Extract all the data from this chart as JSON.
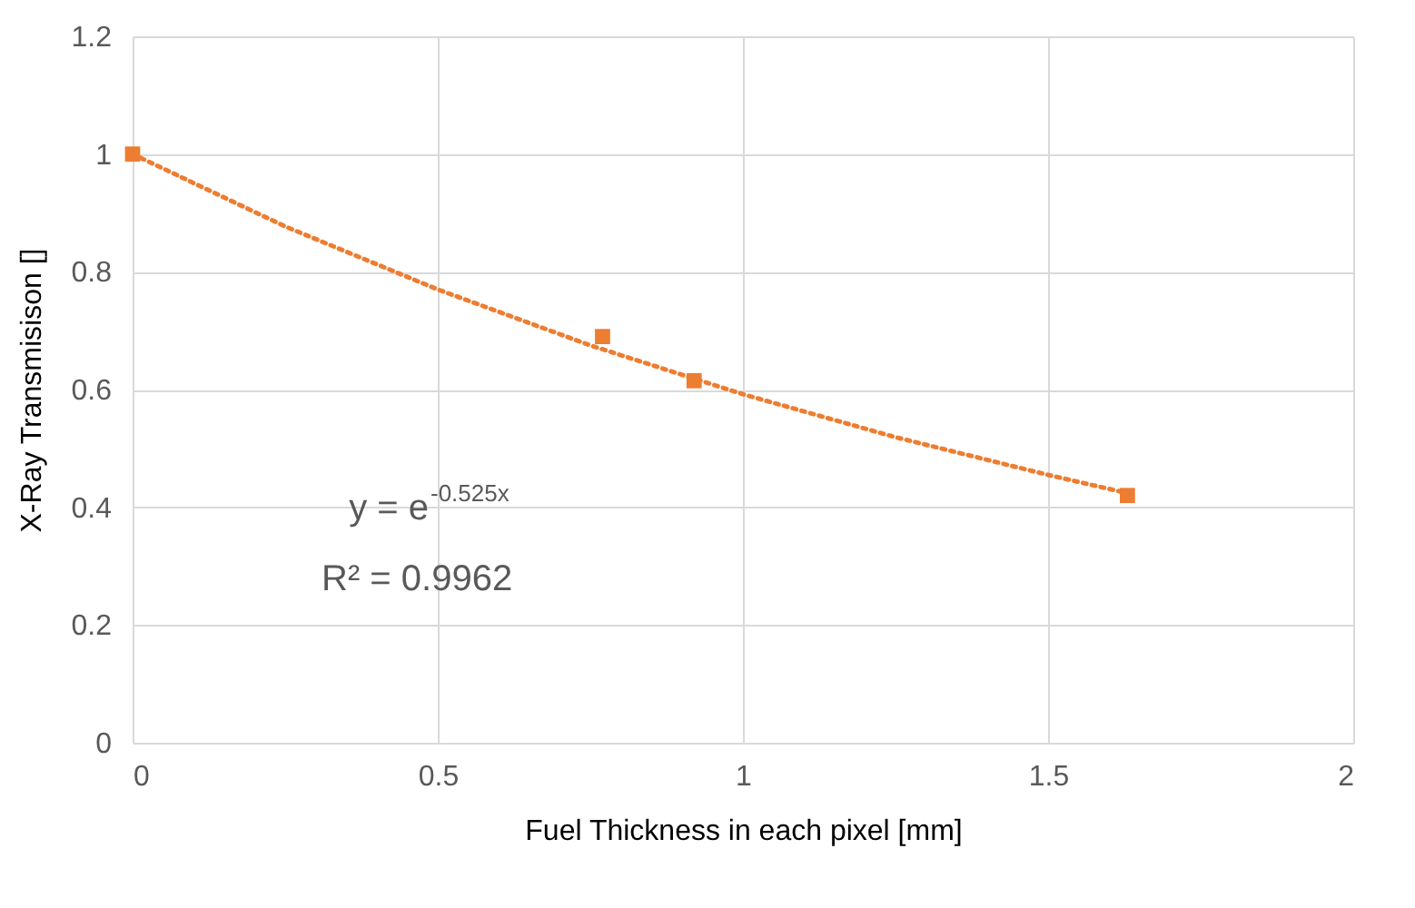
{
  "chart_data": {
    "type": "scatter",
    "xlabel": "Fuel Thickness in each pixel [mm]",
    "ylabel": "X-Ray Transmisison []",
    "x": [
      0,
      0.77,
      0.92,
      1.63
    ],
    "series": [
      {
        "color": "#ed7d31",
        "marker": "square",
        "values": [
          1.0,
          0.69,
          0.615,
          0.42
        ]
      },
      {
        "type": "line",
        "color": "#ed7d31",
        "line_style": "dotted",
        "marker": "none",
        "x": [
          0,
          0.25,
          0.5,
          0.75,
          1.0,
          1.25,
          1.5,
          1.63
        ],
        "values": [
          1.0,
          0.877,
          0.77,
          0.675,
          0.592,
          0.519,
          0.455,
          0.424
        ]
      }
    ],
    "xlim": [
      0,
      2
    ],
    "xticks": [
      0,
      0.5,
      1,
      1.5,
      2
    ],
    "ylim": [
      0,
      1.2
    ],
    "yticks": [
      0,
      0.2,
      0.4,
      0.6,
      0.8,
      1,
      1.2
    ],
    "grid": true,
    "annotations": [
      "y = e$^{-0.525x}$",
      "R² = 0.9962"
    ]
  }
}
